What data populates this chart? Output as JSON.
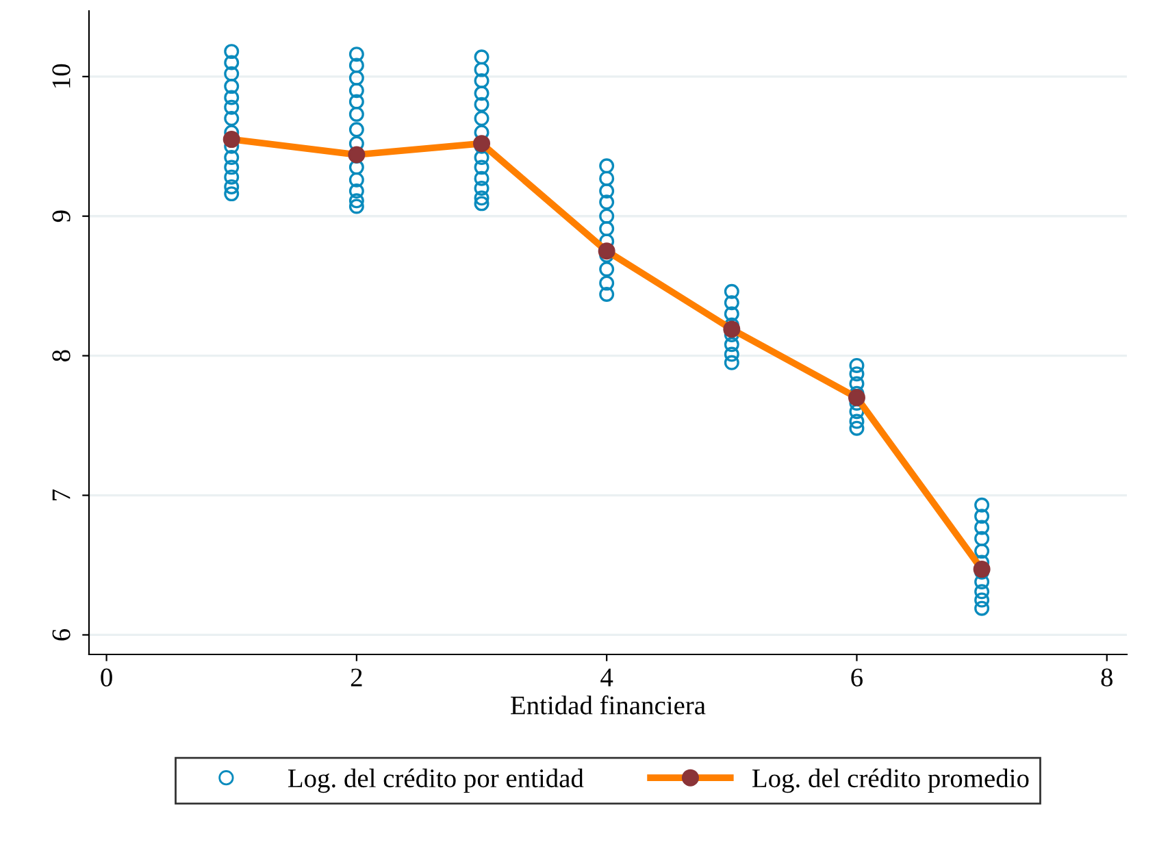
{
  "chart_data": {
    "type": "scatter",
    "xlabel": "Entidad financiera",
    "xlim": [
      -0.14,
      8.16
    ],
    "xticks": [
      0,
      2,
      4,
      6,
      8
    ],
    "ylim": [
      5.86,
      10.47
    ],
    "yticks": [
      6,
      7,
      8,
      9,
      10
    ],
    "grid": "y",
    "legend": "bottom",
    "series": [
      {
        "name": "Log. del crédito por entidad",
        "marker": "circle",
        "color": "#0a8bbd",
        "x": [
          1,
          1,
          1,
          1,
          1,
          1,
          1,
          1,
          1,
          1,
          1,
          1,
          1,
          1,
          2,
          2,
          2,
          2,
          2,
          2,
          2,
          2,
          2,
          2,
          2,
          2,
          2,
          2,
          3,
          3,
          3,
          3,
          3,
          3,
          3,
          3,
          3,
          3,
          3,
          3,
          3,
          3,
          4,
          4,
          4,
          4,
          4,
          4,
          4,
          4,
          4,
          4,
          4,
          5,
          5,
          5,
          5,
          5,
          5,
          5,
          5,
          6,
          6,
          6,
          6,
          6,
          6,
          6,
          6,
          7,
          7,
          7,
          7,
          7,
          7,
          7,
          7,
          7,
          7,
          7
        ],
        "values": [
          10.18,
          10.1,
          10.02,
          9.93,
          9.85,
          9.78,
          9.7,
          9.6,
          9.5,
          9.42,
          9.35,
          9.28,
          9.21,
          9.16,
          10.16,
          10.08,
          9.99,
          9.9,
          9.82,
          9.73,
          9.62,
          9.52,
          9.43,
          9.35,
          9.26,
          9.18,
          9.11,
          9.07,
          10.14,
          10.05,
          9.97,
          9.88,
          9.8,
          9.7,
          9.6,
          9.5,
          9.42,
          9.35,
          9.27,
          9.2,
          9.13,
          9.09,
          9.36,
          9.27,
          9.18,
          9.1,
          9.0,
          8.91,
          8.82,
          8.72,
          8.62,
          8.52,
          8.44,
          8.46,
          8.38,
          8.3,
          8.22,
          8.15,
          8.08,
          8.01,
          7.95,
          7.93,
          7.87,
          7.8,
          7.73,
          7.66,
          7.6,
          7.53,
          7.48,
          6.93,
          6.85,
          6.77,
          6.69,
          6.6,
          6.52,
          6.45,
          6.38,
          6.31,
          6.25,
          6.19
        ]
      },
      {
        "name": "Log. del crédito promedio",
        "type": "line",
        "marker": "circle",
        "color": "#ff7f00",
        "colors": [
          "#8b3438",
          "#8b3438",
          "#8b3438",
          "#8b3438",
          "#8b3438",
          "#8b3438",
          "#8b3438"
        ],
        "line_style": "solid",
        "x": [
          1,
          2,
          3,
          4,
          5,
          6,
          7
        ],
        "values": [
          9.55,
          9.44,
          9.52,
          8.75,
          8.19,
          7.7,
          6.47
        ]
      }
    ]
  }
}
